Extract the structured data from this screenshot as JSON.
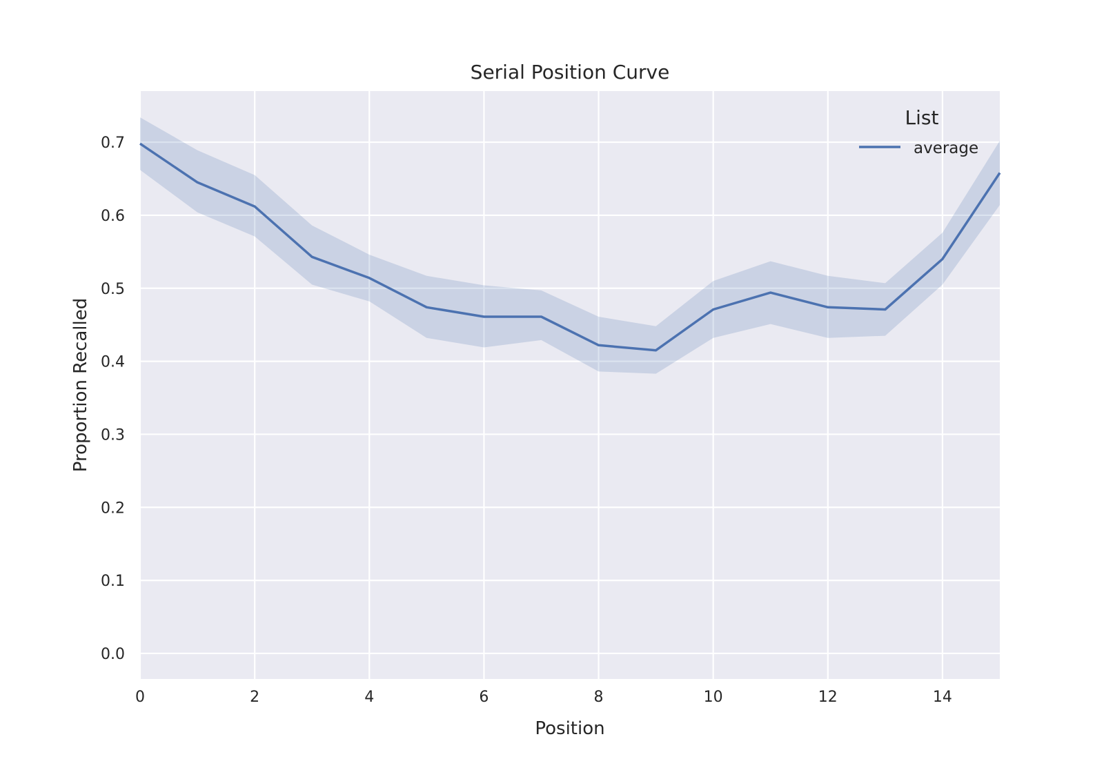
{
  "chart_data": {
    "type": "line",
    "title": "Serial Position Curve",
    "xlabel": "Position",
    "ylabel": "Proportion Recalled",
    "xlim": [
      0,
      15
    ],
    "ylim": [
      -0.035,
      0.77
    ],
    "xticks": [
      0,
      2,
      4,
      6,
      8,
      10,
      12,
      14
    ],
    "xtick_labels": [
      "0",
      "2",
      "4",
      "6",
      "8",
      "10",
      "12",
      "14"
    ],
    "yticks": [
      0.0,
      0.1,
      0.2,
      0.3,
      0.4,
      0.5,
      0.6,
      0.7
    ],
    "ytick_labels": [
      "0.0",
      "0.1",
      "0.2",
      "0.3",
      "0.4",
      "0.5",
      "0.6",
      "0.7"
    ],
    "grid": true,
    "legend": {
      "title": "List",
      "position": "top-right"
    },
    "series": [
      {
        "name": "average",
        "color": "#4c72b0",
        "band_color": "#4c72b0",
        "x": [
          0,
          1,
          2,
          3,
          4,
          5,
          6,
          7,
          8,
          9,
          10,
          11,
          12,
          13,
          14,
          15
        ],
        "y": [
          0.698,
          0.645,
          0.612,
          0.543,
          0.514,
          0.474,
          0.461,
          0.461,
          0.422,
          0.415,
          0.471,
          0.494,
          0.474,
          0.471,
          0.54,
          0.658
        ],
        "ci_lower": [
          0.662,
          0.604,
          0.571,
          0.505,
          0.482,
          0.432,
          0.419,
          0.429,
          0.386,
          0.383,
          0.432,
          0.451,
          0.432,
          0.435,
          0.505,
          0.614
        ],
        "ci_upper": [
          0.734,
          0.689,
          0.655,
          0.586,
          0.546,
          0.517,
          0.504,
          0.497,
          0.461,
          0.448,
          0.51,
          0.537,
          0.517,
          0.507,
          0.576,
          0.702
        ]
      }
    ]
  }
}
